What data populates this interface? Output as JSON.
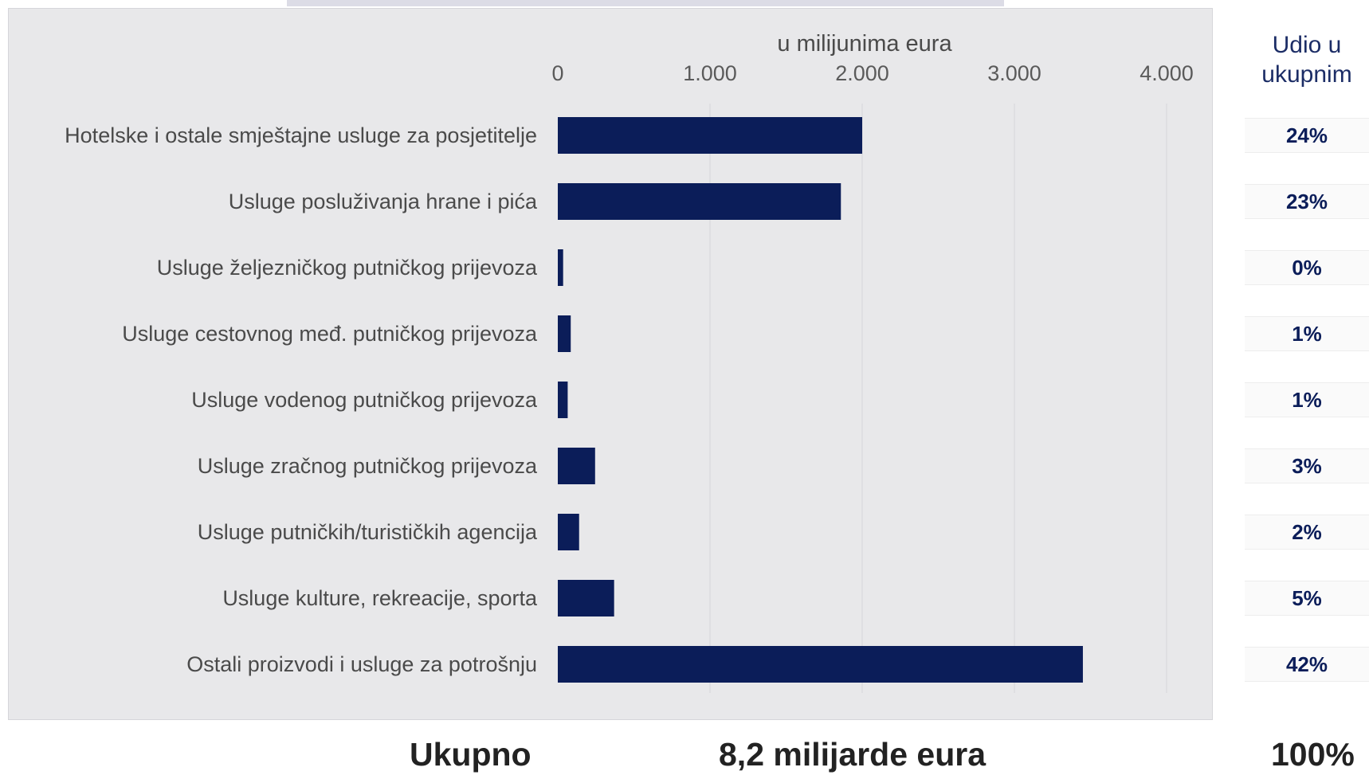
{
  "chart_data": {
    "type": "bar",
    "orientation": "horizontal",
    "axis_title": "u milijunima eura",
    "xlim": [
      0,
      4000
    ],
    "x_ticks": [
      0,
      1000,
      2000,
      3000,
      4000
    ],
    "x_tick_labels": [
      "0",
      "1.000",
      "2.000",
      "3.000",
      "4.000"
    ],
    "grid": true,
    "bar_color": "#0b1d59",
    "categories": [
      "Hotelske i ostale smještajne usluge za posjetitelje",
      "Usluge posluživanja hrane i pića",
      "Usluge željezničkog putničkog prijevoza",
      "Usluge cestovnog međ. putničkog prijevoza",
      "Usluge vodenog putničkog prijevoza",
      "Usluge zračnog putničkog prijevoza",
      "Usluge putničkih/turističkih agencija",
      "Usluge kulture, rekreacije, sporta",
      "Ostali proizvodi i usluge za potrošnju"
    ],
    "values": [
      2000,
      1860,
      35,
      85,
      65,
      245,
      140,
      370,
      3450
    ]
  },
  "share_column": {
    "header": "Udio u ukupnim",
    "values": [
      "24%",
      "23%",
      "0%",
      "1%",
      "1%",
      "3%",
      "2%",
      "5%",
      "42%"
    ]
  },
  "total": {
    "label": "Ukupno",
    "value": "8,2 milijarde eura",
    "share": "100%"
  }
}
